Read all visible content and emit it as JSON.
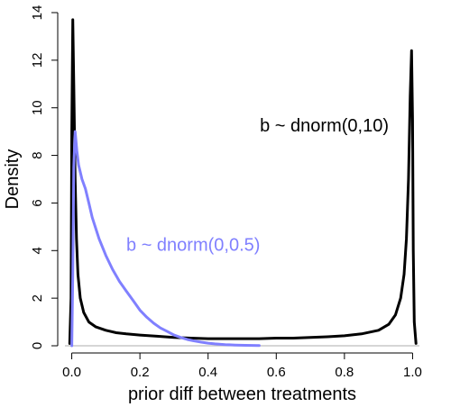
{
  "chart_data": {
    "type": "line",
    "title": "",
    "xlabel": "prior diff between treatments",
    "ylabel": "Density",
    "xlim": [
      -0.02,
      1.02
    ],
    "ylim": [
      0,
      14
    ],
    "xticks": [
      0.0,
      0.2,
      0.4,
      0.6,
      0.8,
      1.0
    ],
    "xtick_labels": [
      "0.0",
      "0.2",
      "0.4",
      "0.6",
      "0.8",
      "1.0"
    ],
    "yticks": [
      0,
      2,
      4,
      6,
      8,
      10,
      12,
      14
    ],
    "ytick_labels": [
      "0",
      "2",
      "4",
      "6",
      "8",
      "10",
      "12",
      "14"
    ],
    "baseline": 0,
    "grid": false,
    "series": [
      {
        "name": "b ~ dnorm(0,10)",
        "color": "#000000",
        "x": [
          -0.006,
          -0.002,
          0.0,
          0.003,
          0.006,
          0.01,
          0.014,
          0.018,
          0.025,
          0.035,
          0.05,
          0.07,
          0.1,
          0.13,
          0.16,
          0.2,
          0.25,
          0.3,
          0.35,
          0.4,
          0.45,
          0.5,
          0.55,
          0.6,
          0.65,
          0.7,
          0.75,
          0.8,
          0.85,
          0.9,
          0.93,
          0.95,
          0.965,
          0.975,
          0.982,
          0.988,
          0.993,
          0.997,
          1.0,
          1.002,
          1.005,
          1.01
        ],
        "y": [
          0.1,
          2.0,
          9.0,
          13.7,
          11.0,
          7.0,
          4.5,
          3.0,
          2.0,
          1.4,
          1.0,
          0.8,
          0.65,
          0.55,
          0.5,
          0.45,
          0.4,
          0.35,
          0.32,
          0.3,
          0.3,
          0.3,
          0.3,
          0.32,
          0.32,
          0.35,
          0.38,
          0.42,
          0.5,
          0.65,
          0.9,
          1.3,
          2.0,
          3.0,
          4.5,
          7.0,
          10.5,
          12.4,
          9.5,
          4.0,
          1.0,
          0.1
        ]
      },
      {
        "name": "b ~ dnorm(0,0.5)",
        "color": "#8080ff",
        "x": [
          0.0,
          0.003,
          0.006,
          0.01,
          0.015,
          0.02,
          0.03,
          0.04,
          0.05,
          0.06,
          0.08,
          0.1,
          0.12,
          0.14,
          0.16,
          0.18,
          0.2,
          0.22,
          0.24,
          0.26,
          0.28,
          0.3,
          0.32,
          0.34,
          0.36,
          0.38,
          0.4,
          0.42,
          0.45,
          0.48,
          0.51,
          0.55
        ],
        "y": [
          0.0,
          3.0,
          7.5,
          9.0,
          8.2,
          7.6,
          7.0,
          6.6,
          6.0,
          5.4,
          4.5,
          3.8,
          3.2,
          2.7,
          2.3,
          1.9,
          1.5,
          1.2,
          0.95,
          0.75,
          0.6,
          0.45,
          0.35,
          0.26,
          0.2,
          0.15,
          0.11,
          0.08,
          0.05,
          0.03,
          0.02,
          0.01
        ]
      }
    ],
    "annotations": [
      {
        "text": "b ~ dnorm(0,10)",
        "x": 0.93,
        "y": 9.0,
        "color": "#000000"
      },
      {
        "text": "b ~ dnorm(0,0.5)",
        "x": 0.16,
        "y": 4.0,
        "color": "#8080ff"
      }
    ]
  }
}
